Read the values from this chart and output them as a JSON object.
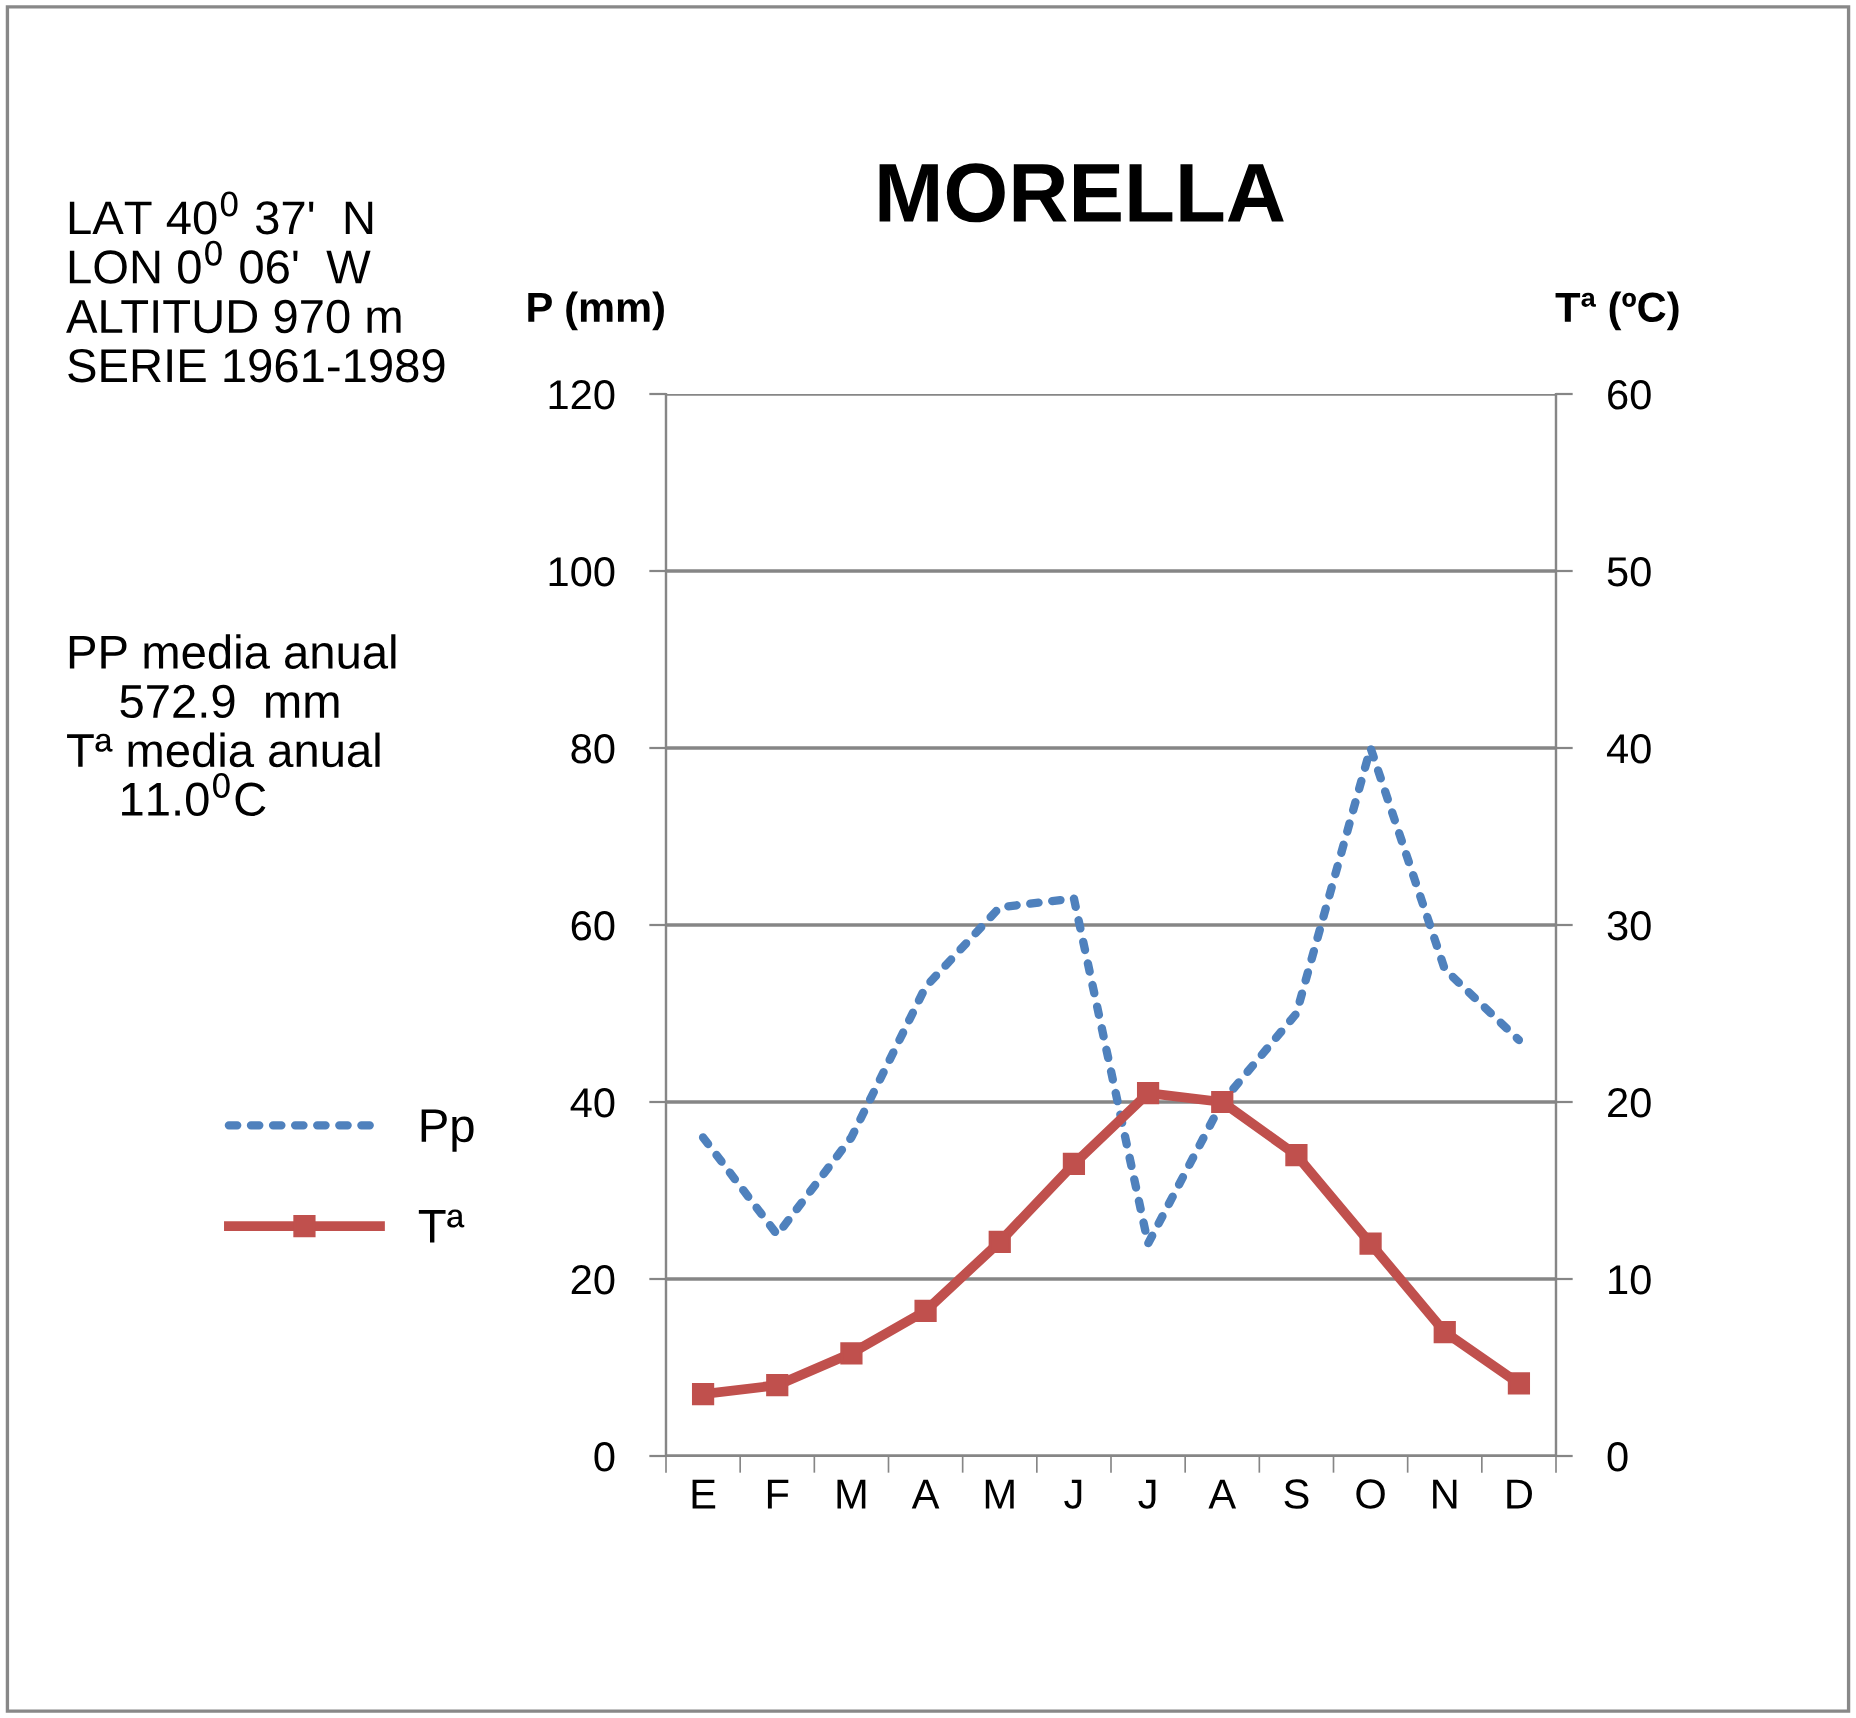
{
  "chart_data": {
    "type": "line",
    "title": "MORELLA",
    "ylabel": "P (mm)",
    "y2label": "Tª (ºC)",
    "categories": [
      "E",
      "F",
      "M",
      "A",
      "M",
      "J",
      "J",
      "A",
      "S",
      "O",
      "N",
      "D"
    ],
    "series": [
      {
        "name": "Pp",
        "color": "#4f81bd",
        "values": [
          36,
          25,
          36,
          53,
          62,
          63,
          24,
          40,
          50,
          80,
          55,
          47
        ],
        "line_style": "dotted",
        "marker": "none"
      },
      {
        "name": "Tª",
        "color": "#c0504d",
        "values": [
          3.5,
          4.0,
          5.8,
          8.2,
          12.1,
          16.5,
          20.5,
          20.0,
          17.0,
          12.0,
          7.0,
          4.1
        ],
        "axis": "y2",
        "line_style": "solid",
        "marker": "square"
      }
    ],
    "ylim": [
      0,
      120
    ],
    "yticks": [
      0,
      20,
      40,
      60,
      80,
      100,
      120
    ],
    "y2lim": [
      0,
      60
    ],
    "y2ticks": [
      0,
      10,
      20,
      30,
      40,
      50,
      60
    ],
    "grid": "y",
    "legend": "left",
    "annotations": [
      "LAT 40$^{0}$ 37'  N\nLON 0$^{0}$ 06'  W\nALTITUD 970 m\nSERIE 1961-1989",
      "PP media anual\n    572.9  mm\nTª media anual\n    11.0$^{0}$C"
    ]
  }
}
